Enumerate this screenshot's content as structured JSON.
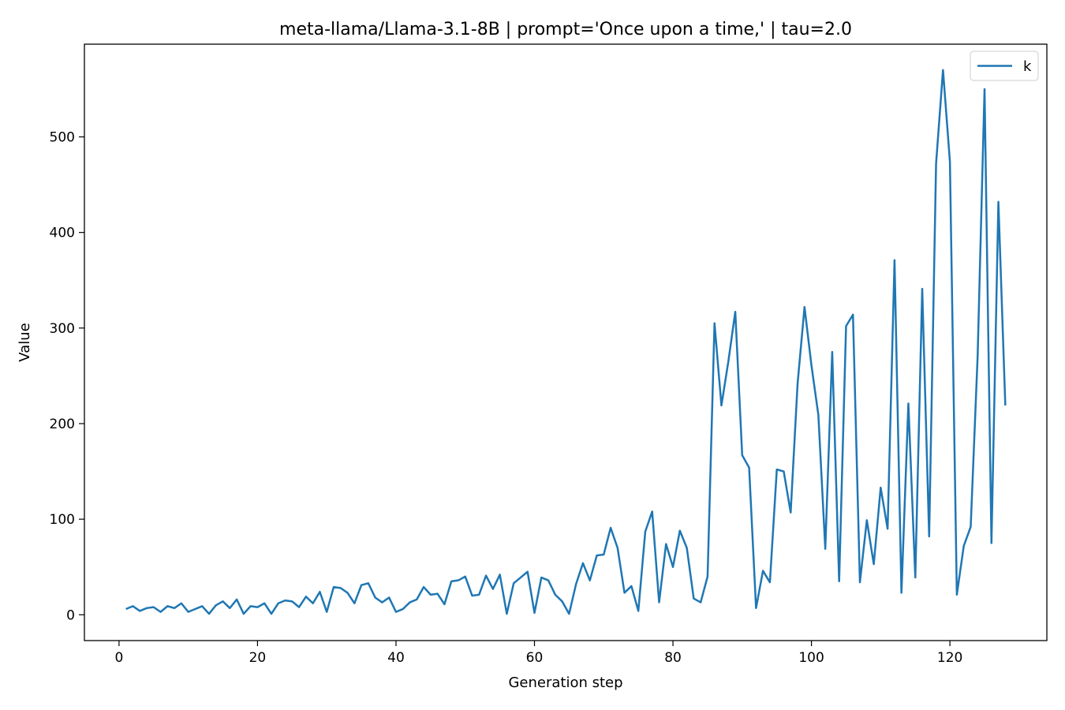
{
  "chart_data": {
    "type": "line",
    "title": "meta-llama/Llama-3.1-8B | prompt='Once upon a time,' | tau=2.0",
    "xlabel": "Generation step",
    "ylabel": "Value",
    "xlim": [
      -5,
      134
    ],
    "ylim": [
      -27,
      597
    ],
    "xticks": [
      0,
      20,
      40,
      60,
      80,
      100,
      120
    ],
    "yticks": [
      0,
      100,
      200,
      300,
      400,
      500
    ],
    "grid": false,
    "legend_position": "top-right",
    "series": [
      {
        "name": "k",
        "color": "#1f77b4",
        "x": [
          1,
          2,
          3,
          4,
          5,
          6,
          7,
          8,
          9,
          10,
          11,
          12,
          13,
          14,
          15,
          16,
          17,
          18,
          19,
          20,
          21,
          22,
          23,
          24,
          25,
          26,
          27,
          28,
          29,
          30,
          31,
          32,
          33,
          34,
          35,
          36,
          37,
          38,
          39,
          40,
          41,
          42,
          43,
          44,
          45,
          46,
          47,
          48,
          49,
          50,
          51,
          52,
          53,
          54,
          55,
          56,
          57,
          58,
          59,
          60,
          61,
          62,
          63,
          64,
          65,
          66,
          67,
          68,
          69,
          70,
          71,
          72,
          73,
          74,
          75,
          76,
          77,
          78,
          79,
          80,
          81,
          82,
          83,
          84,
          85,
          86,
          87,
          88,
          89,
          90,
          91,
          92,
          93,
          94,
          95,
          96,
          97,
          98,
          99,
          100,
          101,
          102,
          103,
          104,
          105,
          106,
          107,
          108,
          109,
          110,
          111,
          112,
          113,
          114,
          115,
          116,
          117,
          118,
          119,
          120,
          121,
          122,
          123,
          124,
          125,
          126,
          127,
          128
        ],
        "values": [
          6,
          9,
          4,
          7,
          8,
          3,
          9,
          7,
          12,
          3,
          6,
          9,
          1,
          10,
          14,
          7,
          16,
          1,
          9,
          8,
          12,
          1,
          12,
          15,
          14,
          8,
          19,
          12,
          24,
          3,
          29,
          28,
          23,
          12,
          31,
          33,
          18,
          13,
          18,
          3,
          6,
          13,
          16,
          29,
          21,
          22,
          11,
          35,
          36,
          40,
          20,
          21,
          41,
          27,
          42,
          1,
          33,
          39,
          45,
          2,
          39,
          36,
          21,
          14,
          1,
          32,
          54,
          36,
          62,
          63,
          91,
          70,
          23,
          30,
          4,
          87,
          108,
          13,
          74,
          50,
          88,
          70,
          17,
          13,
          40,
          305,
          219,
          265,
          317,
          167,
          154,
          7,
          46,
          34,
          152,
          150,
          107,
          242,
          322,
          261,
          209,
          69,
          275,
          35,
          302,
          314,
          34,
          99,
          53,
          133,
          90,
          371,
          23,
          221,
          39,
          341,
          82,
          472,
          570,
          474,
          21,
          72,
          92,
          270,
          550,
          75,
          432,
          219
        ]
      }
    ]
  }
}
